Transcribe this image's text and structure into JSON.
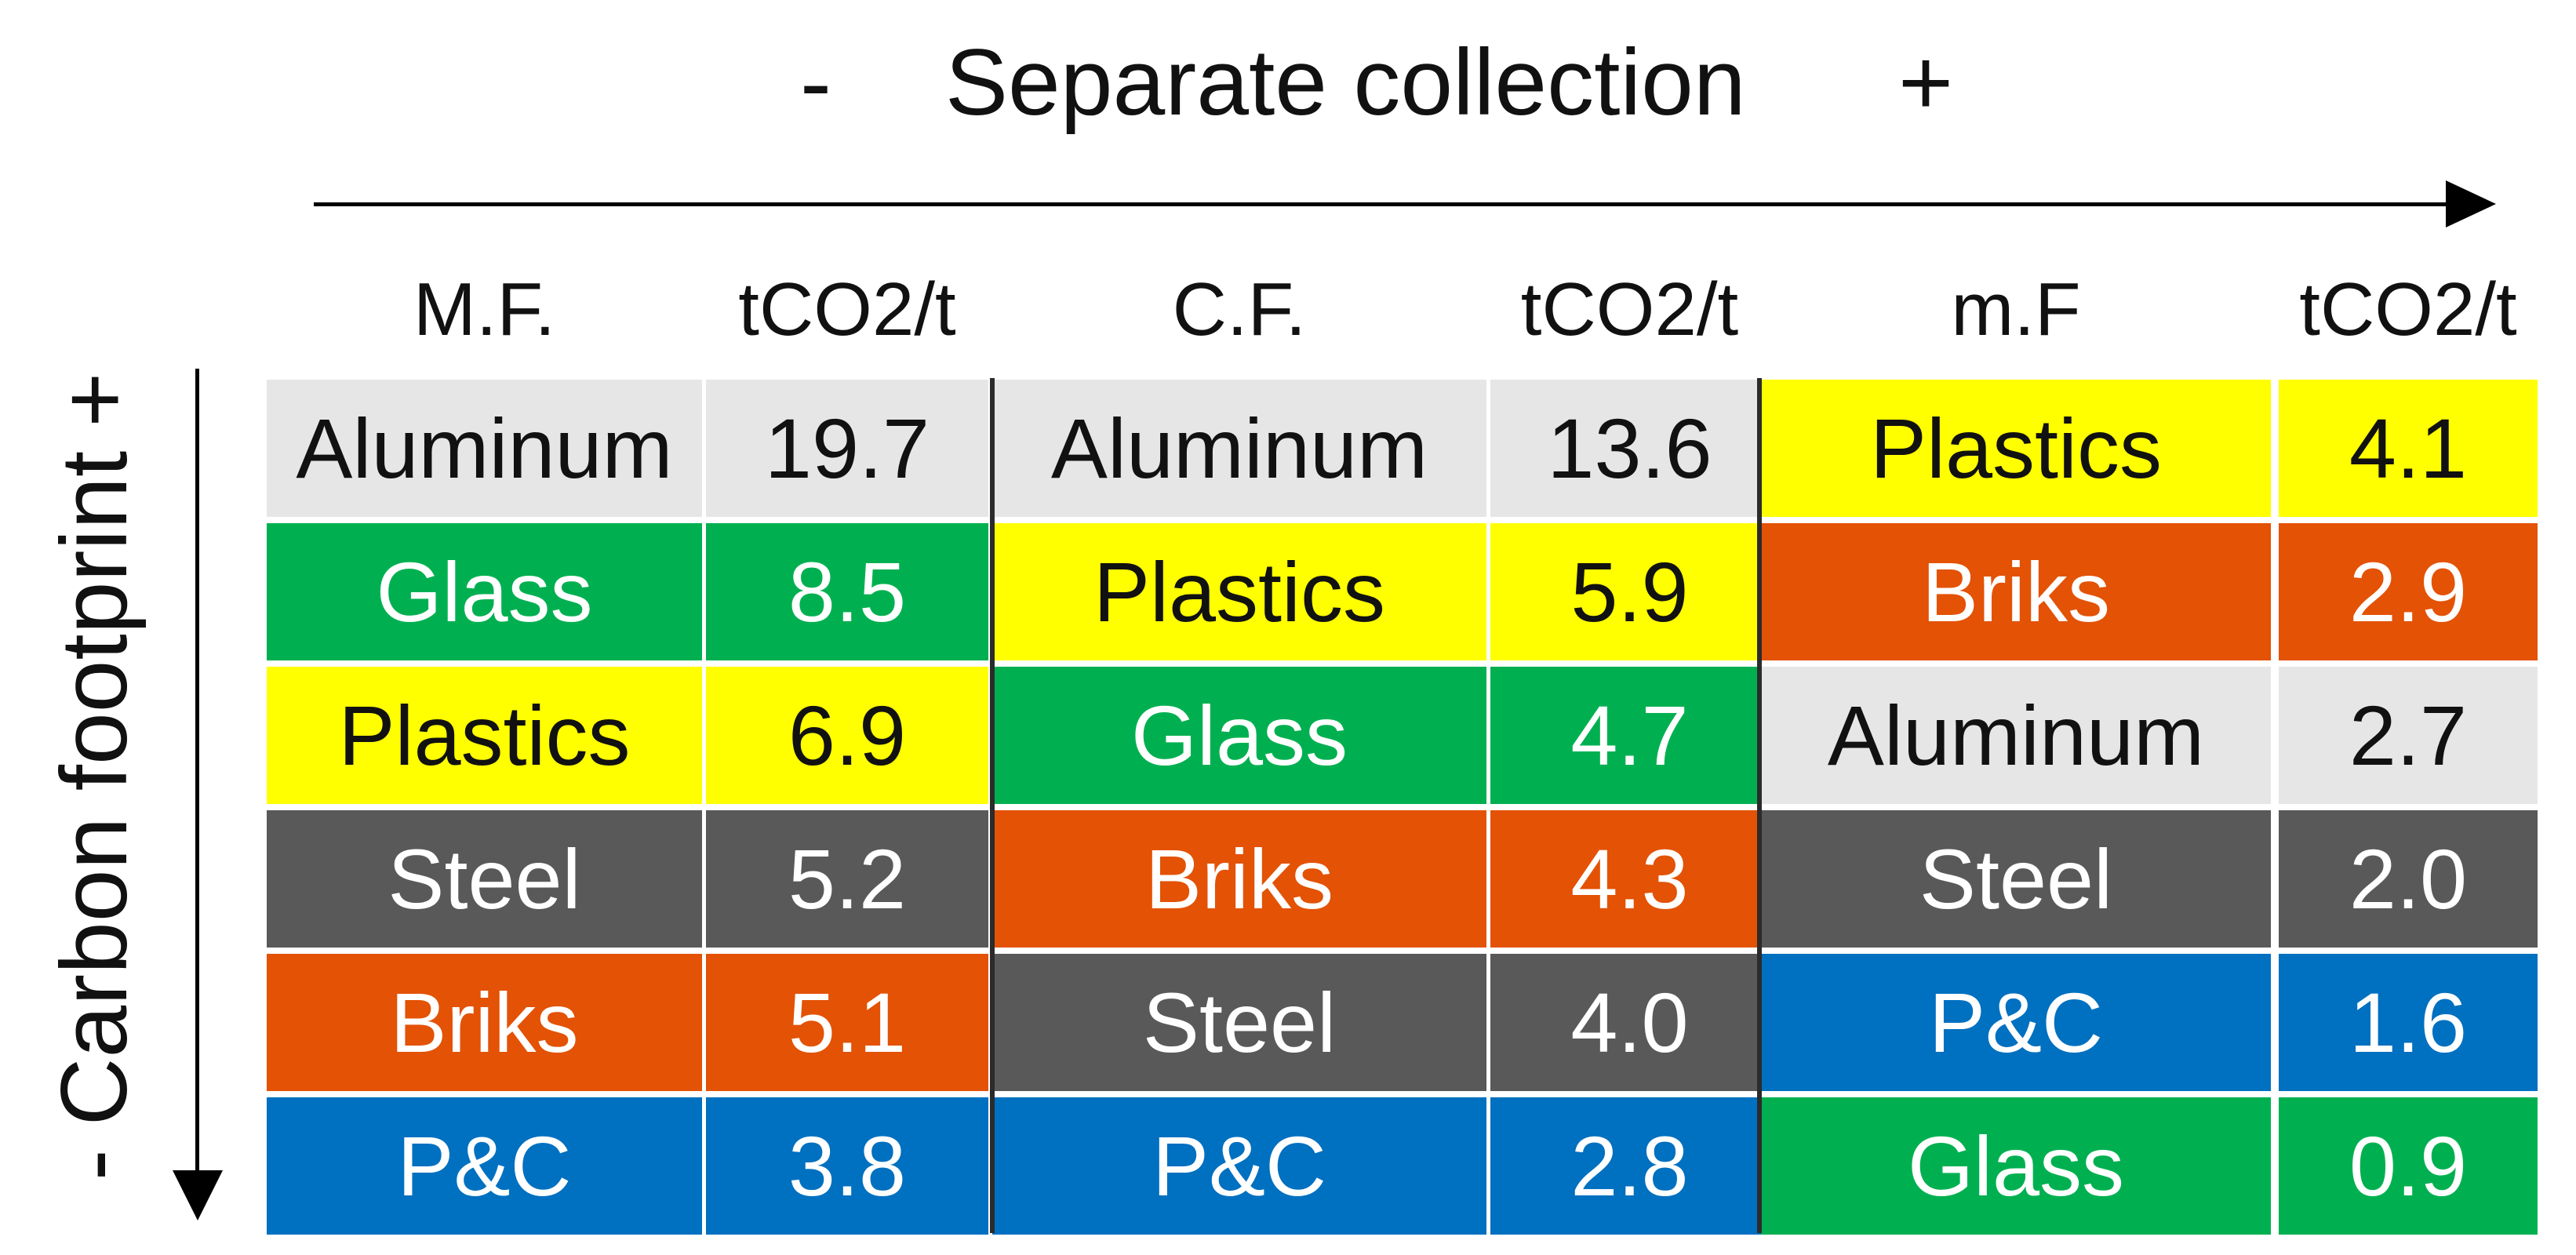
{
  "title": {
    "minus": "-",
    "text": "Separate collection",
    "plus": "+"
  },
  "y_axis": {
    "minus": "-",
    "text": "Carbon footprint",
    "plus": "+"
  },
  "colors": {
    "Aluminum": "#e7e6e6",
    "Glass": "#00b050",
    "Plastics": "#ffff00",
    "Steel": "#595959",
    "Briks": "#e35205",
    "P&C": "#0070c0"
  },
  "text_colors": {
    "Aluminum": "#111111",
    "Glass": "#ffffff",
    "Plastics": "#111111",
    "Steel": "#ffffff",
    "Briks": "#ffffff",
    "P&C": "#ffffff"
  },
  "groups": [
    {
      "name": "M.F.",
      "unit": "tCO2/t",
      "rows": [
        {
          "material": "Aluminum",
          "value": "19.7"
        },
        {
          "material": "Glass",
          "value": "8.5"
        },
        {
          "material": "Plastics",
          "value": "6.9"
        },
        {
          "material": "Steel",
          "value": "5.2"
        },
        {
          "material": "Briks",
          "value": "5.1"
        },
        {
          "material": "P&C",
          "value": "3.8"
        }
      ]
    },
    {
      "name": "C.F.",
      "unit": "tCO2/t",
      "rows": [
        {
          "material": "Aluminum",
          "value": "13.6"
        },
        {
          "material": "Plastics",
          "value": "5.9"
        },
        {
          "material": "Glass",
          "value": "4.7"
        },
        {
          "material": "Briks",
          "value": "4.3"
        },
        {
          "material": "Steel",
          "value": "4.0"
        },
        {
          "material": "P&C",
          "value": "2.8"
        }
      ]
    },
    {
      "name": "m.F",
      "unit": "tCO2/t",
      "rows": [
        {
          "material": "Plastics",
          "value": "4.1"
        },
        {
          "material": "Briks",
          "value": "2.9"
        },
        {
          "material": "Aluminum",
          "value": "2.7"
        },
        {
          "material": "Steel",
          "value": "2.0"
        },
        {
          "material": "P&C",
          "value": "1.6"
        },
        {
          "material": "Glass",
          "value": "0.9"
        }
      ]
    }
  ]
}
